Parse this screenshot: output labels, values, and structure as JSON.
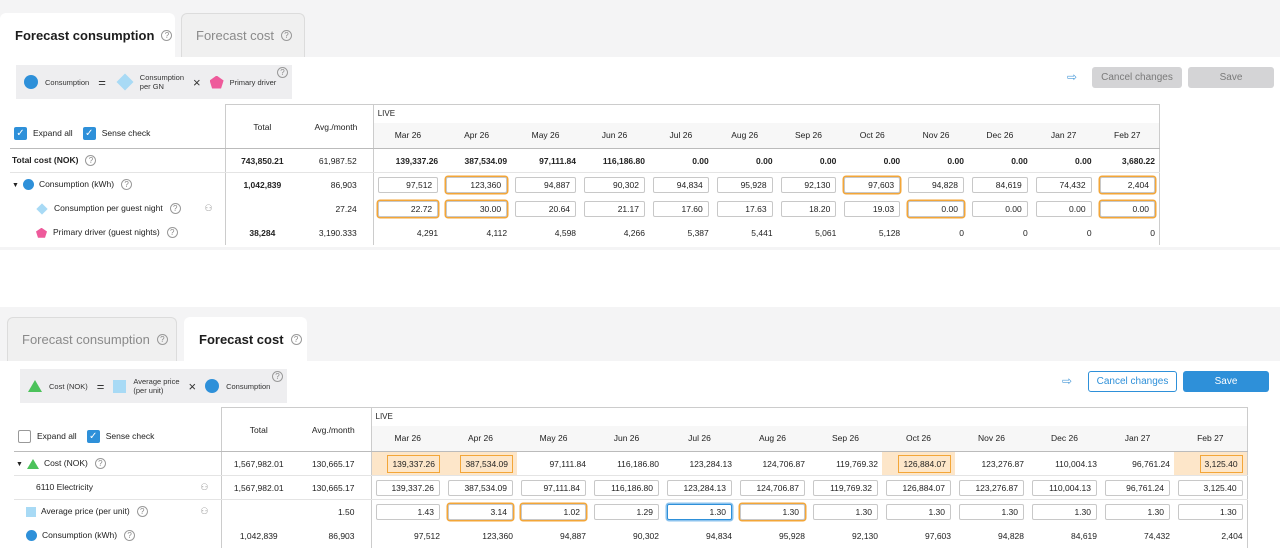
{
  "panel1": {
    "tabs": [
      {
        "label": "Forecast consumption",
        "active": true
      },
      {
        "label": "Forecast cost",
        "active": false
      }
    ],
    "formula": {
      "a": "Consumption",
      "eq": "=",
      "b1": "Consumption",
      "b2": "per GN",
      "x": "×",
      "c": "Primary driver"
    },
    "buttons": {
      "cancel": "Cancel changes",
      "save": "Save"
    },
    "controls": {
      "expand_all": "Expand all",
      "sense_check": "Sense check",
      "expand_checked": true,
      "sense_checked": true
    },
    "headers": {
      "total": "Total",
      "avg": "Avg./month",
      "live": "LIVE",
      "months": [
        "Mar 26",
        "Apr 26",
        "May 26",
        "Jun 26",
        "Jul 26",
        "Aug 26",
        "Sep 26",
        "Oct 26",
        "Nov 26",
        "Dec 26",
        "Jan 27",
        "Feb 27"
      ]
    },
    "rows": [
      {
        "label": "Total cost (NOK)",
        "total": "743,850.21",
        "avg": "61,987.52",
        "values": [
          "139,337.26",
          "387,534.09",
          "97,111.84",
          "116,186.80",
          "0.00",
          "0.00",
          "0.00",
          "0.00",
          "0.00",
          "0.00",
          "0.00",
          "3,680.22"
        ]
      },
      {
        "label": "Consumption (kWh)",
        "total": "1,042,839",
        "avg": "86,903",
        "values": [
          "97,512",
          "123,360",
          "94,887",
          "90,302",
          "94,834",
          "95,928",
          "92,130",
          "97,603",
          "94,828",
          "84,619",
          "74,432",
          "2,404"
        ]
      },
      {
        "label": "Consumption per guest night",
        "total": "",
        "avg": "27.24",
        "values": [
          "22.72",
          "30.00",
          "20.64",
          "21.17",
          "17.60",
          "17.63",
          "18.20",
          "19.03",
          "0.00",
          "0.00",
          "0.00",
          "0.00"
        ]
      },
      {
        "label": "Primary driver (guest nights)",
        "total": "38,284",
        "avg": "3,190.333",
        "values": [
          "4,291",
          "4,112",
          "4,598",
          "4,266",
          "5,387",
          "5,441",
          "5,061",
          "5,128",
          "0",
          "0",
          "0",
          "0"
        ]
      }
    ],
    "icons": {
      "export": "export-icon",
      "user": "user-edit-icon",
      "help": "help-icon"
    }
  },
  "panel2": {
    "tabs": [
      {
        "label": "Forecast consumption",
        "active": false
      },
      {
        "label": "Forecast cost",
        "active": true
      }
    ],
    "formula": {
      "a": "Cost (NOK)",
      "eq": "=",
      "b1": "Average price",
      "b2": "(per unit)",
      "x": "×",
      "c": "Consumption"
    },
    "buttons": {
      "cancel": "Cancel changes",
      "save": "Save"
    },
    "controls": {
      "expand_all": "Expand all",
      "sense_check": "Sense check",
      "expand_checked": false,
      "sense_checked": true
    },
    "headers": {
      "total": "Total",
      "avg": "Avg./month",
      "live": "LIVE",
      "months": [
        "Mar 26",
        "Apr 26",
        "May 26",
        "Jun 26",
        "Jul 26",
        "Aug 26",
        "Sep 26",
        "Oct 26",
        "Nov 26",
        "Dec 26",
        "Jan 27",
        "Feb 27"
      ]
    },
    "rows": [
      {
        "label": "Cost (NOK)",
        "total": "1,567,982.01",
        "avg": "130,665.17",
        "values": [
          "139,337.26",
          "387,534.09",
          "97,111.84",
          "116,186.80",
          "123,284.13",
          "124,706.87",
          "119,769.32",
          "126,884.07",
          "123,276.87",
          "110,004.13",
          "96,761.24",
          "3,125.40"
        ]
      },
      {
        "label": "6110 Electricity",
        "total": "1,567,982.01",
        "avg": "130,665.17",
        "values": [
          "139,337.26",
          "387,534.09",
          "97,111.84",
          "116,186.80",
          "123,284.13",
          "124,706.87",
          "119,769.32",
          "126,884.07",
          "123,276.87",
          "110,004.13",
          "96,761.24",
          "3,125.40"
        ]
      },
      {
        "label": "Average price (per unit)",
        "total": "",
        "avg": "1.50",
        "values": [
          "1.43",
          "3.14",
          "1.02",
          "1.29",
          "1.30",
          "1.30",
          "1.30",
          "1.30",
          "1.30",
          "1.30",
          "1.30",
          "1.30"
        ]
      },
      {
        "label": "Consumption (kWh)",
        "total": "1,042,839",
        "avg": "86,903",
        "values": [
          "97,512",
          "123,360",
          "94,887",
          "90,302",
          "94,834",
          "95,928",
          "92,130",
          "97,603",
          "94,828",
          "84,619",
          "74,432",
          "2,404"
        ]
      }
    ]
  }
}
